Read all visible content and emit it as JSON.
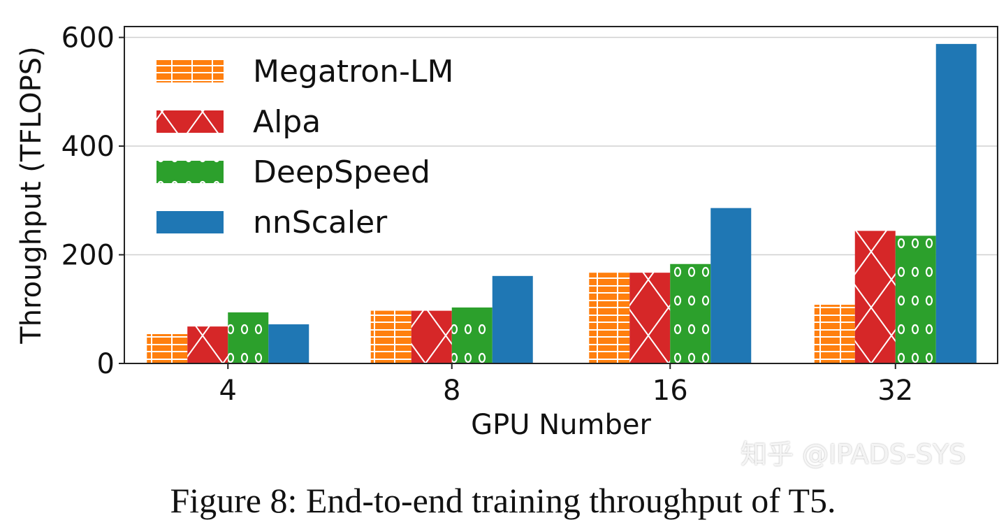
{
  "chart_data": {
    "type": "bar",
    "title": "",
    "xlabel": "GPU Number",
    "ylabel": "Throughput (TFLOPS)",
    "categories": [
      "4",
      "8",
      "16",
      "32"
    ],
    "ylim": [
      0,
      620
    ],
    "yticks": [
      0,
      200,
      400,
      600
    ],
    "grid": "horizontal",
    "legend_position": "top-left",
    "series": [
      {
        "name": "Megatron-LM",
        "color": "#ff7f0e",
        "hatch": "plus-grid",
        "values": [
          54,
          97,
          167,
          108
        ]
      },
      {
        "name": "Alpa",
        "color": "#d62728",
        "hatch": "cross-x",
        "values": [
          68,
          97,
          167,
          244
        ]
      },
      {
        "name": "DeepSpeed",
        "color": "#2ca02c",
        "hatch": "circles",
        "values": [
          94,
          103,
          183,
          235
        ]
      },
      {
        "name": "nnScaler",
        "color": "#1f77b4",
        "hatch": "none",
        "values": [
          72,
          161,
          286,
          588
        ]
      }
    ]
  },
  "caption": "Figure 8: End-to-end training throughput of T5.",
  "watermark": "知乎 @IPADS-SYS"
}
